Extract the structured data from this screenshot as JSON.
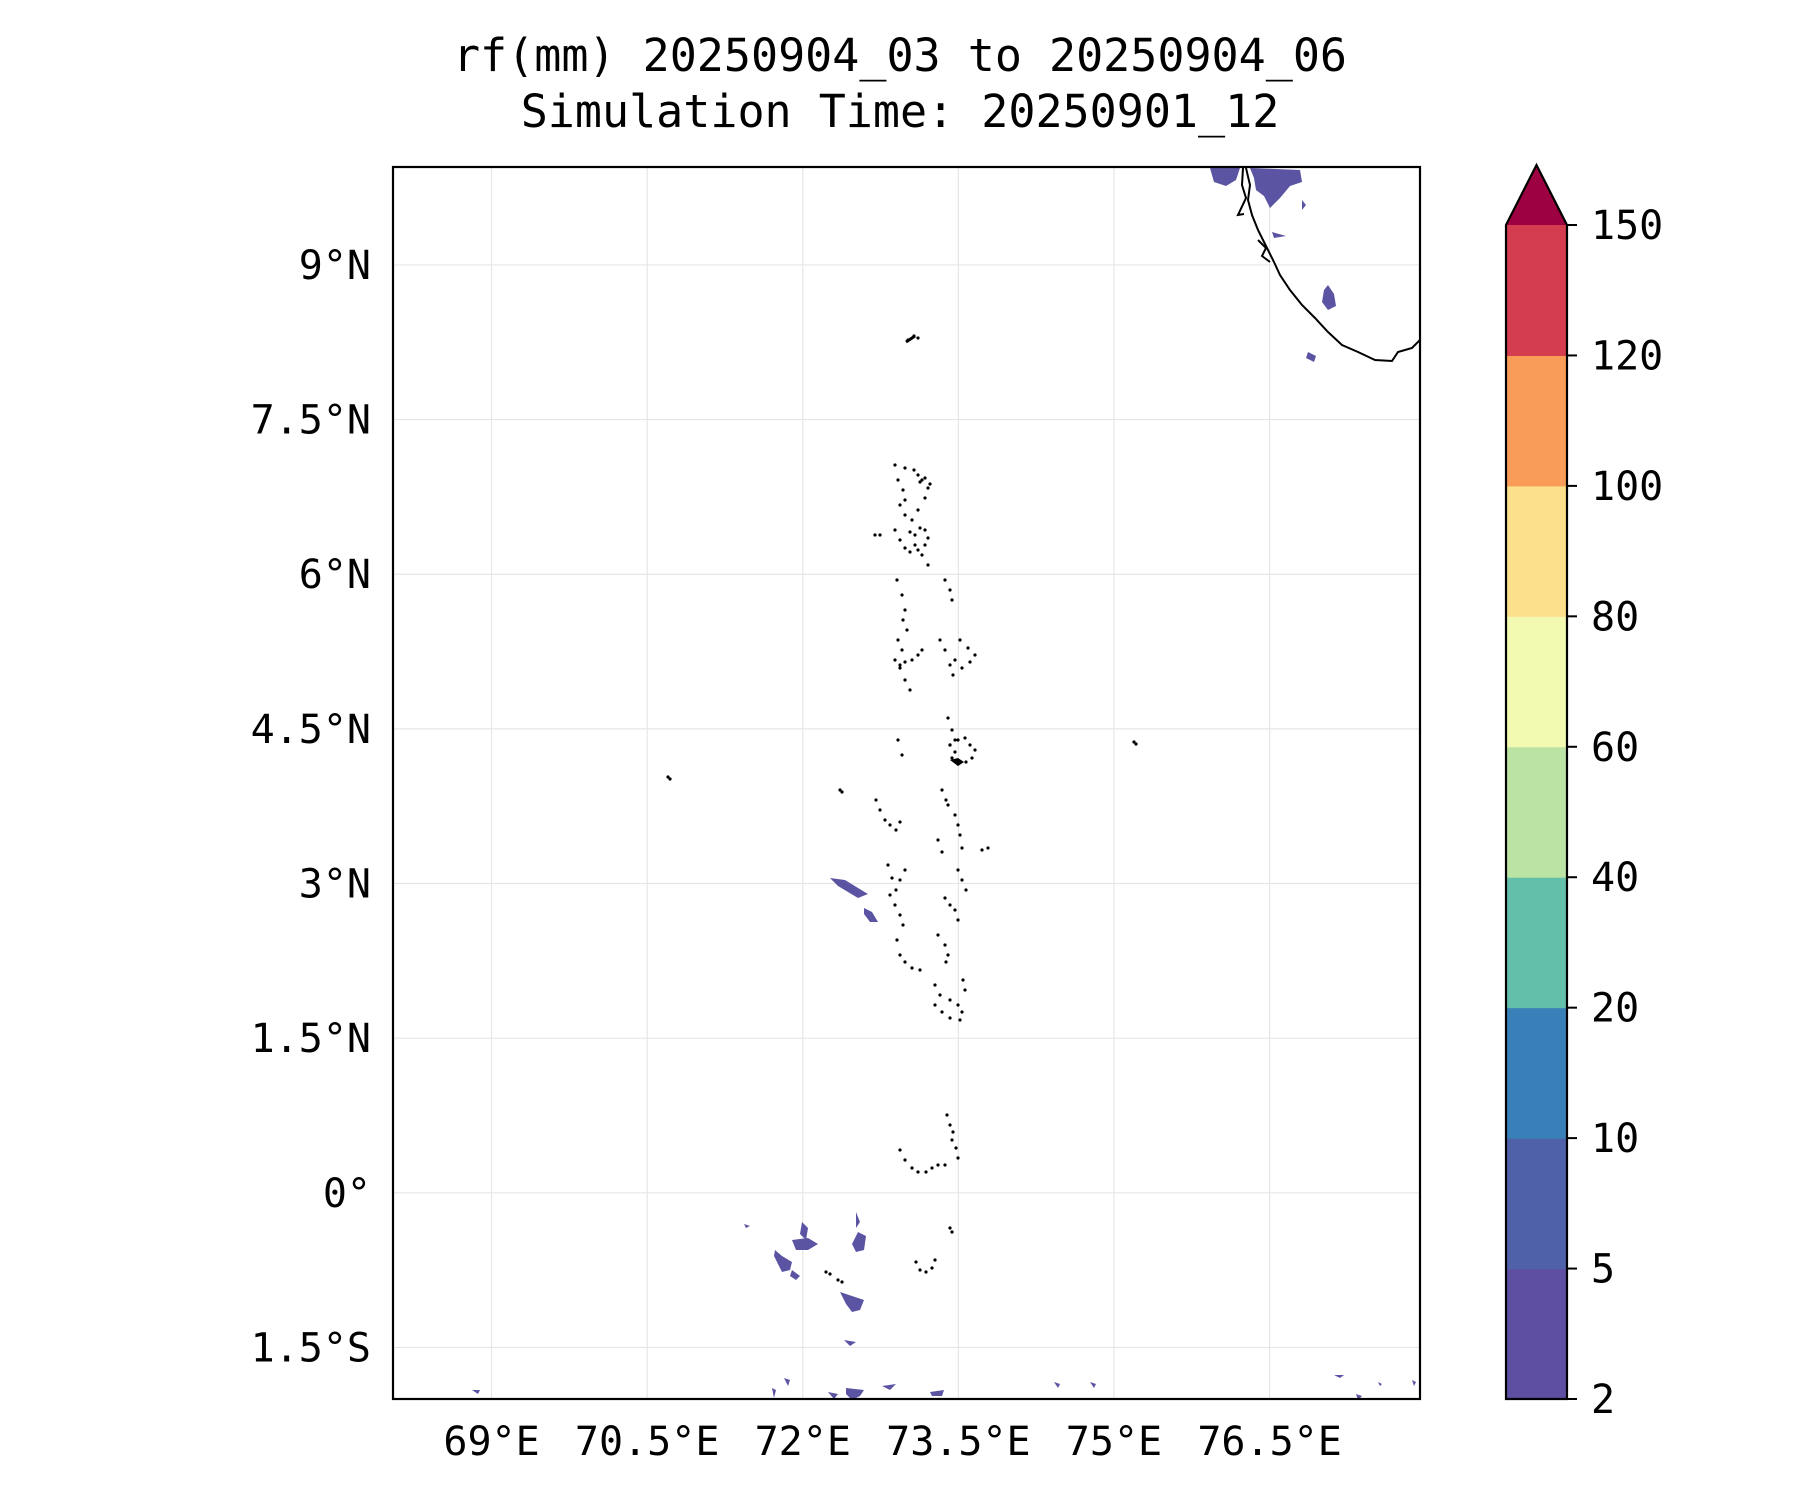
{
  "map": {
    "title_line1": "rf(mm) 20250904_03 to 20250904_06",
    "title_line2": "Simulation Time: 20250901_12",
    "lon_ticks": [
      "69°E",
      "70.5°E",
      "72°E",
      "73.5°E",
      "75°E",
      "76.5°E"
    ],
    "lat_ticks": [
      "9°N",
      "7.5°N",
      "6°N",
      "4.5°N",
      "3°N",
      "1.5°N",
      "0°",
      "1.5°S"
    ],
    "gridlines": true,
    "extent": {
      "lon_min": 68.05,
      "lon_max": 77.95,
      "lat_min": -2.0,
      "lat_max": 9.95
    },
    "coastline_color": "#000000",
    "rain_color": "#5b54a3"
  },
  "colorbar": {
    "levels": [
      "2",
      "5",
      "10",
      "20",
      "40",
      "60",
      "80",
      "100",
      "120",
      "150"
    ],
    "colors": [
      "#5e4fa2",
      "#4f61a9",
      "#3980b9",
      "#63beaa",
      "#bbe3a3",
      "#f2f9b0",
      "#fce08b",
      "#f99c58",
      "#d33d4f",
      "#9e0142"
    ],
    "extend": "max"
  }
}
